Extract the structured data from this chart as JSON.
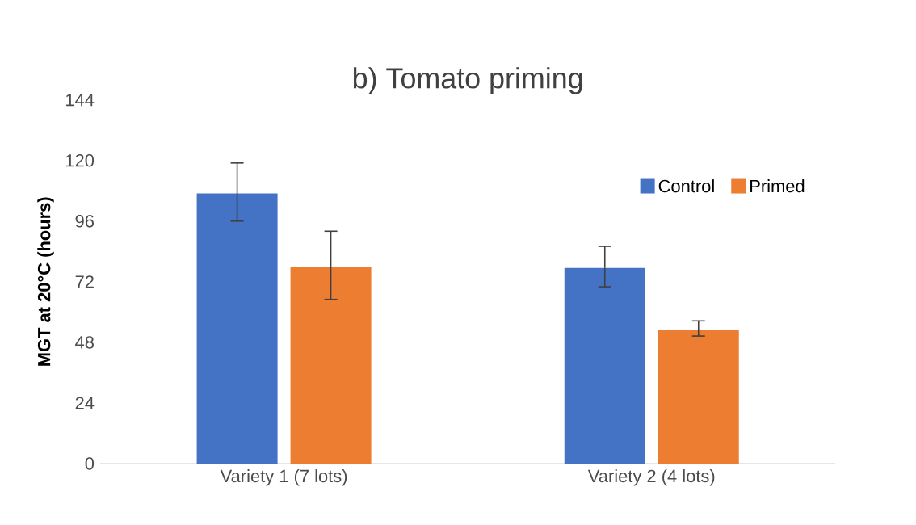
{
  "chart_data": {
    "type": "bar",
    "title": "b) Tomato priming",
    "ylabel": "MGT at 20°C (hours)",
    "categories": [
      "Variety 1 (7 lots)",
      "Variety 2 (4 lots)"
    ],
    "series": [
      {
        "name": "Control",
        "color": "#4472c4",
        "values": [
          107,
          77.5
        ],
        "errors": [
          [
            96,
            119
          ],
          [
            70,
            86
          ]
        ]
      },
      {
        "name": "Primed",
        "color": "#ed7d31",
        "values": [
          78,
          53
        ],
        "errors": [
          [
            65,
            92
          ],
          [
            50.5,
            56.5
          ]
        ]
      }
    ],
    "ylim": [
      0,
      144
    ],
    "yticks": [
      0,
      24,
      48,
      72,
      96,
      120,
      144
    ],
    "legend": "top right",
    "grid": false
  }
}
